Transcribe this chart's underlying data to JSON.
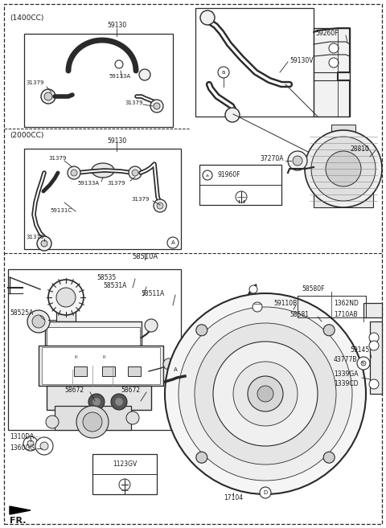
{
  "bg_color": "#ffffff",
  "line_color": "#2a2a2a",
  "fig_width": 4.8,
  "fig_height": 6.57,
  "dpi": 100,
  "labels": {
    "1400cc": "(1400CC)",
    "2000cc": "(2000CC)",
    "58510A_lbl": "58510A",
    "59130_1": "59130",
    "59130_2": "59130",
    "31379_1": "31379",
    "31379_2": "31379",
    "31379_3": "31379",
    "31379_4": "31379",
    "31379_5": "31379",
    "31379_6": "31379",
    "59133A_1": "59133A",
    "59133A_2": "59133A",
    "59131C": "59131C",
    "59130V": "59130V",
    "59260F": "59260F",
    "37270A": "37270A",
    "91960F": "91960F",
    "28810": "28810",
    "58535": "58535",
    "58531A": "58531A",
    "58511A": "58511A",
    "58525A": "58525A",
    "58672_a": "58672",
    "58672_b": "58672",
    "1310DA": "1310DA",
    "1360GG": "1360GG",
    "1123GV": "1123GV",
    "17104": "17104",
    "58580F": "58580F",
    "1362ND": "1362ND",
    "58581": "58581",
    "1710AB": "1710AB",
    "59110B": "59110B",
    "59145": "59145",
    "43777B": "43777B",
    "1339GA": "1339GA",
    "1339CD": "1339CD",
    "FR": "FR."
  }
}
